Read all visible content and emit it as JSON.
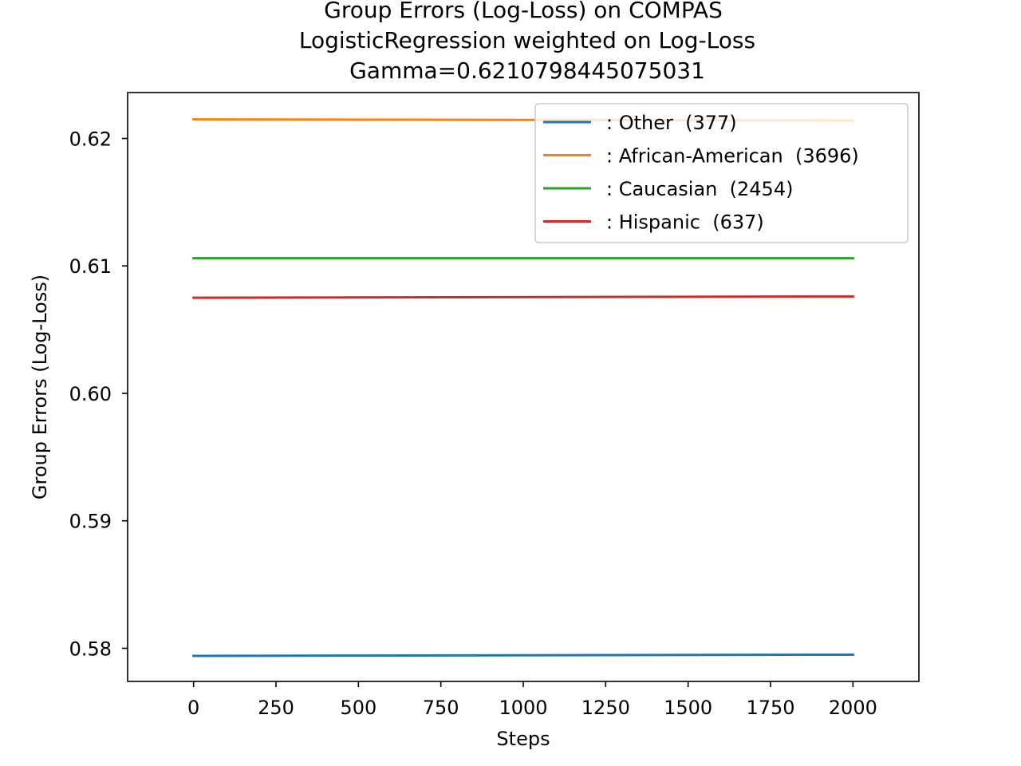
{
  "chart_data": {
    "type": "line",
    "title": [
      "Group Errors (Log-Loss) on COMPAS",
      "LogisticRegression weighted on Log-Loss",
      "Gamma=0.6210798445075031"
    ],
    "xlabel": "Steps",
    "ylabel": "Group Errors (Log-Loss)",
    "xlim": [
      -200,
      2200
    ],
    "ylim": [
      0.5774,
      0.6236
    ],
    "xticks": [
      0,
      250,
      500,
      750,
      1000,
      1250,
      1500,
      1750,
      2000
    ],
    "xtick_labels": [
      "0",
      "250",
      "500",
      "750",
      "1000",
      "1250",
      "1500",
      "1750",
      "2000"
    ],
    "yticks": [
      0.58,
      0.59,
      0.6,
      0.61,
      0.62
    ],
    "ytick_labels": [
      "0.58",
      "0.59",
      "0.60",
      "0.61",
      "0.62"
    ],
    "grid": false,
    "legend_position": "top-right",
    "x": [
      0,
      2000
    ],
    "series": [
      {
        "name": ": Other  (377)",
        "color": "#1f77b4",
        "values": [
          0.5794,
          0.5795
        ]
      },
      {
        "name": ": African-American  (3696)",
        "color": "#ff7f0e",
        "values": [
          0.6215,
          0.6214
        ]
      },
      {
        "name": ": Caucasian  (2454)",
        "color": "#2ca02c",
        "values": [
          0.6106,
          0.6106
        ]
      },
      {
        "name": ": Hispanic  (637)",
        "color": "#d62728",
        "values": [
          0.6075,
          0.6076
        ]
      }
    ]
  }
}
